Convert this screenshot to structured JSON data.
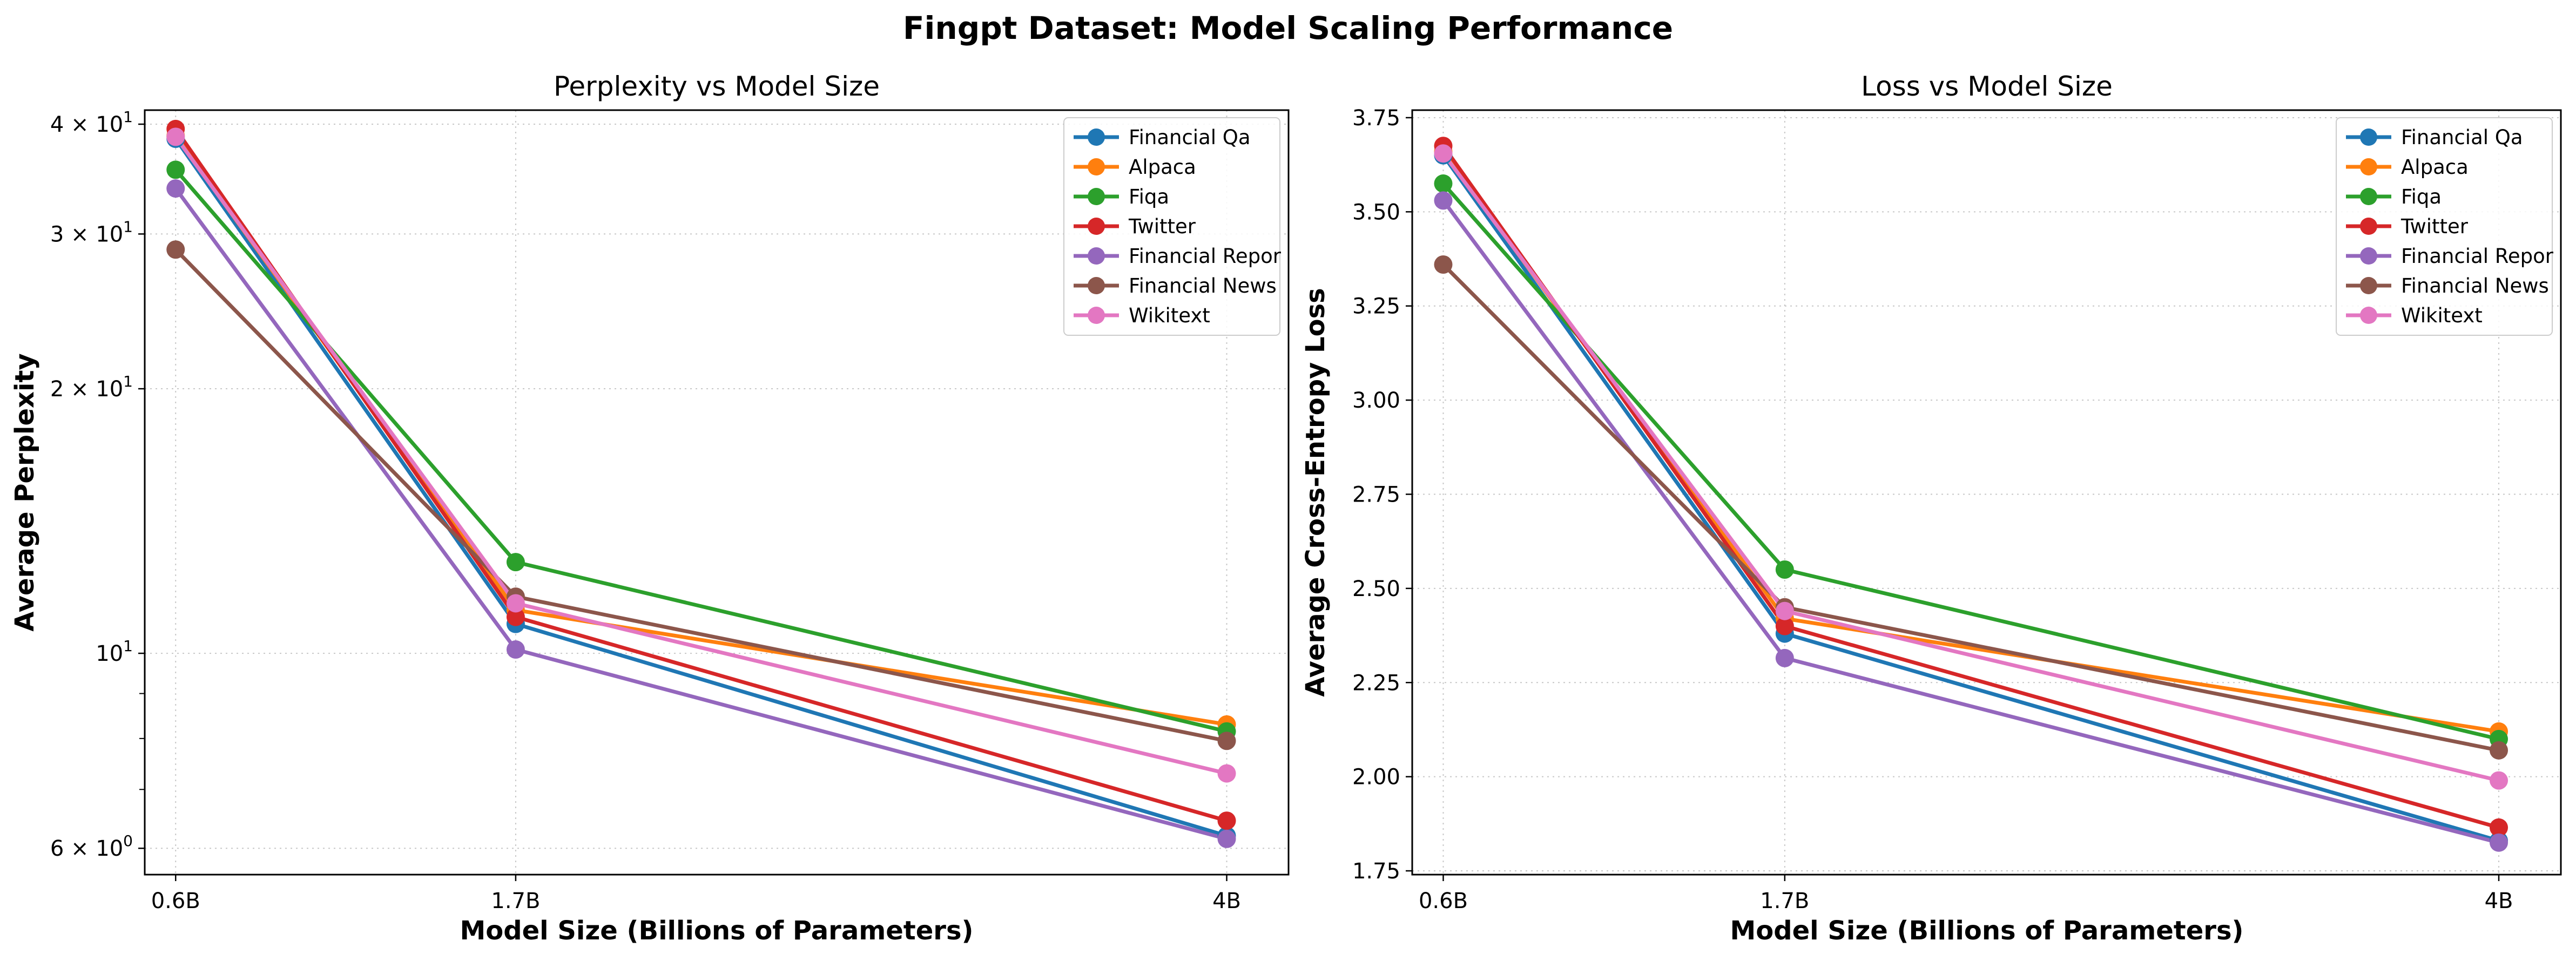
{
  "figure_title": "Fingpt Dataset: Model Scaling Performance",
  "chart_data": [
    {
      "type": "line",
      "title": "Perplexity vs Model Size",
      "xlabel": "Model Size (Billions of Parameters)",
      "ylabel": "Average Perplexity",
      "x": [
        0.6,
        1.7,
        4.0
      ],
      "x_tick_labels": [
        "0.6B",
        "1.7B",
        "4B"
      ],
      "x_scale": "linear",
      "xlim": [
        0.5,
        4.2
      ],
      "y_scale": "log",
      "ylim": [
        5.6,
        41.5
      ],
      "y_ticks": [
        {
          "value": 40,
          "base": "4 × 10",
          "exp": "1"
        },
        {
          "value": 30,
          "base": "3 × 10",
          "exp": "1"
        },
        {
          "value": 20,
          "base": "2 × 10",
          "exp": "1"
        },
        {
          "value": 10,
          "base": "10",
          "exp": "1"
        },
        {
          "value": 6,
          "base": "6 × 10",
          "exp": "0"
        }
      ],
      "grid": true,
      "legend_position": "top-right",
      "series": [
        {
          "name": "Financial Qa",
          "color": "#1f77b4",
          "values": [
            38.5,
            10.8,
            6.2
          ]
        },
        {
          "name": "Alpaca",
          "color": "#ff7f0e",
          "values": [
            38.8,
            11.2,
            8.3
          ]
        },
        {
          "name": "Fiqa",
          "color": "#2ca02c",
          "values": [
            35.5,
            12.7,
            8.15
          ]
        },
        {
          "name": "Twitter",
          "color": "#d62728",
          "values": [
            39.5,
            11.0,
            6.45
          ]
        },
        {
          "name": "Financial Repor",
          "color": "#9467bd",
          "values": [
            33.8,
            10.1,
            6.15
          ]
        },
        {
          "name": "Financial News",
          "color": "#8c564b",
          "values": [
            28.8,
            11.6,
            7.95
          ]
        },
        {
          "name": "Wikitext",
          "color": "#e377c2",
          "values": [
            38.7,
            11.4,
            7.3
          ]
        }
      ]
    },
    {
      "type": "line",
      "title": "Loss vs Model Size",
      "xlabel": "Model Size (Billions of Parameters)",
      "ylabel": "Average Cross-Entropy Loss",
      "x": [
        0.6,
        1.7,
        4.0
      ],
      "x_tick_labels": [
        "0.6B",
        "1.7B",
        "4B"
      ],
      "x_scale": "linear",
      "xlim": [
        0.5,
        4.2
      ],
      "y_scale": "linear",
      "ylim": [
        1.74,
        3.77
      ],
      "y_ticks": [
        {
          "value": 3.75,
          "label": "3.75"
        },
        {
          "value": 3.5,
          "label": "3.50"
        },
        {
          "value": 3.25,
          "label": "3.25"
        },
        {
          "value": 3.0,
          "label": "3.00"
        },
        {
          "value": 2.75,
          "label": "2.75"
        },
        {
          "value": 2.5,
          "label": "2.50"
        },
        {
          "value": 2.25,
          "label": "2.25"
        },
        {
          "value": 2.0,
          "label": "2.00"
        },
        {
          "value": 1.75,
          "label": "1.75"
        }
      ],
      "grid": true,
      "legend_position": "top-right",
      "series": [
        {
          "name": "Financial Qa",
          "color": "#1f77b4",
          "values": [
            3.65,
            2.38,
            1.83
          ]
        },
        {
          "name": "Alpaca",
          "color": "#ff7f0e",
          "values": [
            3.66,
            2.42,
            2.12
          ]
        },
        {
          "name": "Fiqa",
          "color": "#2ca02c",
          "values": [
            3.575,
            2.55,
            2.1
          ]
        },
        {
          "name": "Twitter",
          "color": "#d62728",
          "values": [
            3.675,
            2.4,
            1.865
          ]
        },
        {
          "name": "Financial Repor",
          "color": "#9467bd",
          "values": [
            3.53,
            2.315,
            1.825
          ]
        },
        {
          "name": "Financial News",
          "color": "#8c564b",
          "values": [
            3.36,
            2.45,
            2.07
          ]
        },
        {
          "name": "Wikitext",
          "color": "#e377c2",
          "values": [
            3.655,
            2.44,
            1.99
          ]
        }
      ]
    }
  ]
}
